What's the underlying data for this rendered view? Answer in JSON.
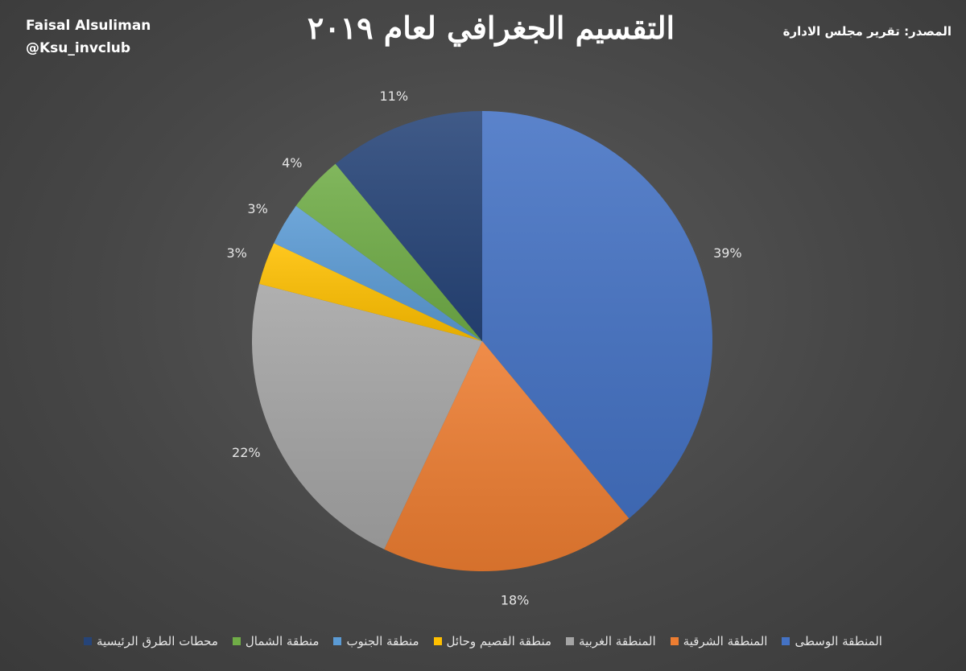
{
  "author": {
    "name": "Faisal Alsuliman",
    "handle": "@Ksu_invclub"
  },
  "source_text": "المصدر: تقرير مجلس الادارة",
  "chart_data": {
    "type": "pie",
    "title": "التقسيم الجغرافي لعام ٢٠١٩",
    "legend_position": "bottom",
    "slices": [
      {
        "name": "المنطقة الوسطى",
        "value": 39,
        "label": "39%",
        "color": "#4472C4"
      },
      {
        "name": "المنطقة الشرقية",
        "value": 18,
        "label": "18%",
        "color": "#ED7D31"
      },
      {
        "name": "المنطقة الغربية",
        "value": 22,
        "label": "22%",
        "color": "#A5A5A5"
      },
      {
        "name": "منطقة القصيم وحائل",
        "value": 3,
        "label": "3%",
        "color": "#FFC000"
      },
      {
        "name": "منطقة الجنوب",
        "value": 3,
        "label": "3%",
        "color": "#5B9BD5"
      },
      {
        "name": "منطقة الشمال",
        "value": 4,
        "label": "4%",
        "color": "#70AD47"
      },
      {
        "name": "محطات الطرق الرئيسية",
        "value": 11,
        "label": "11%",
        "color": "#264478"
      }
    ]
  }
}
